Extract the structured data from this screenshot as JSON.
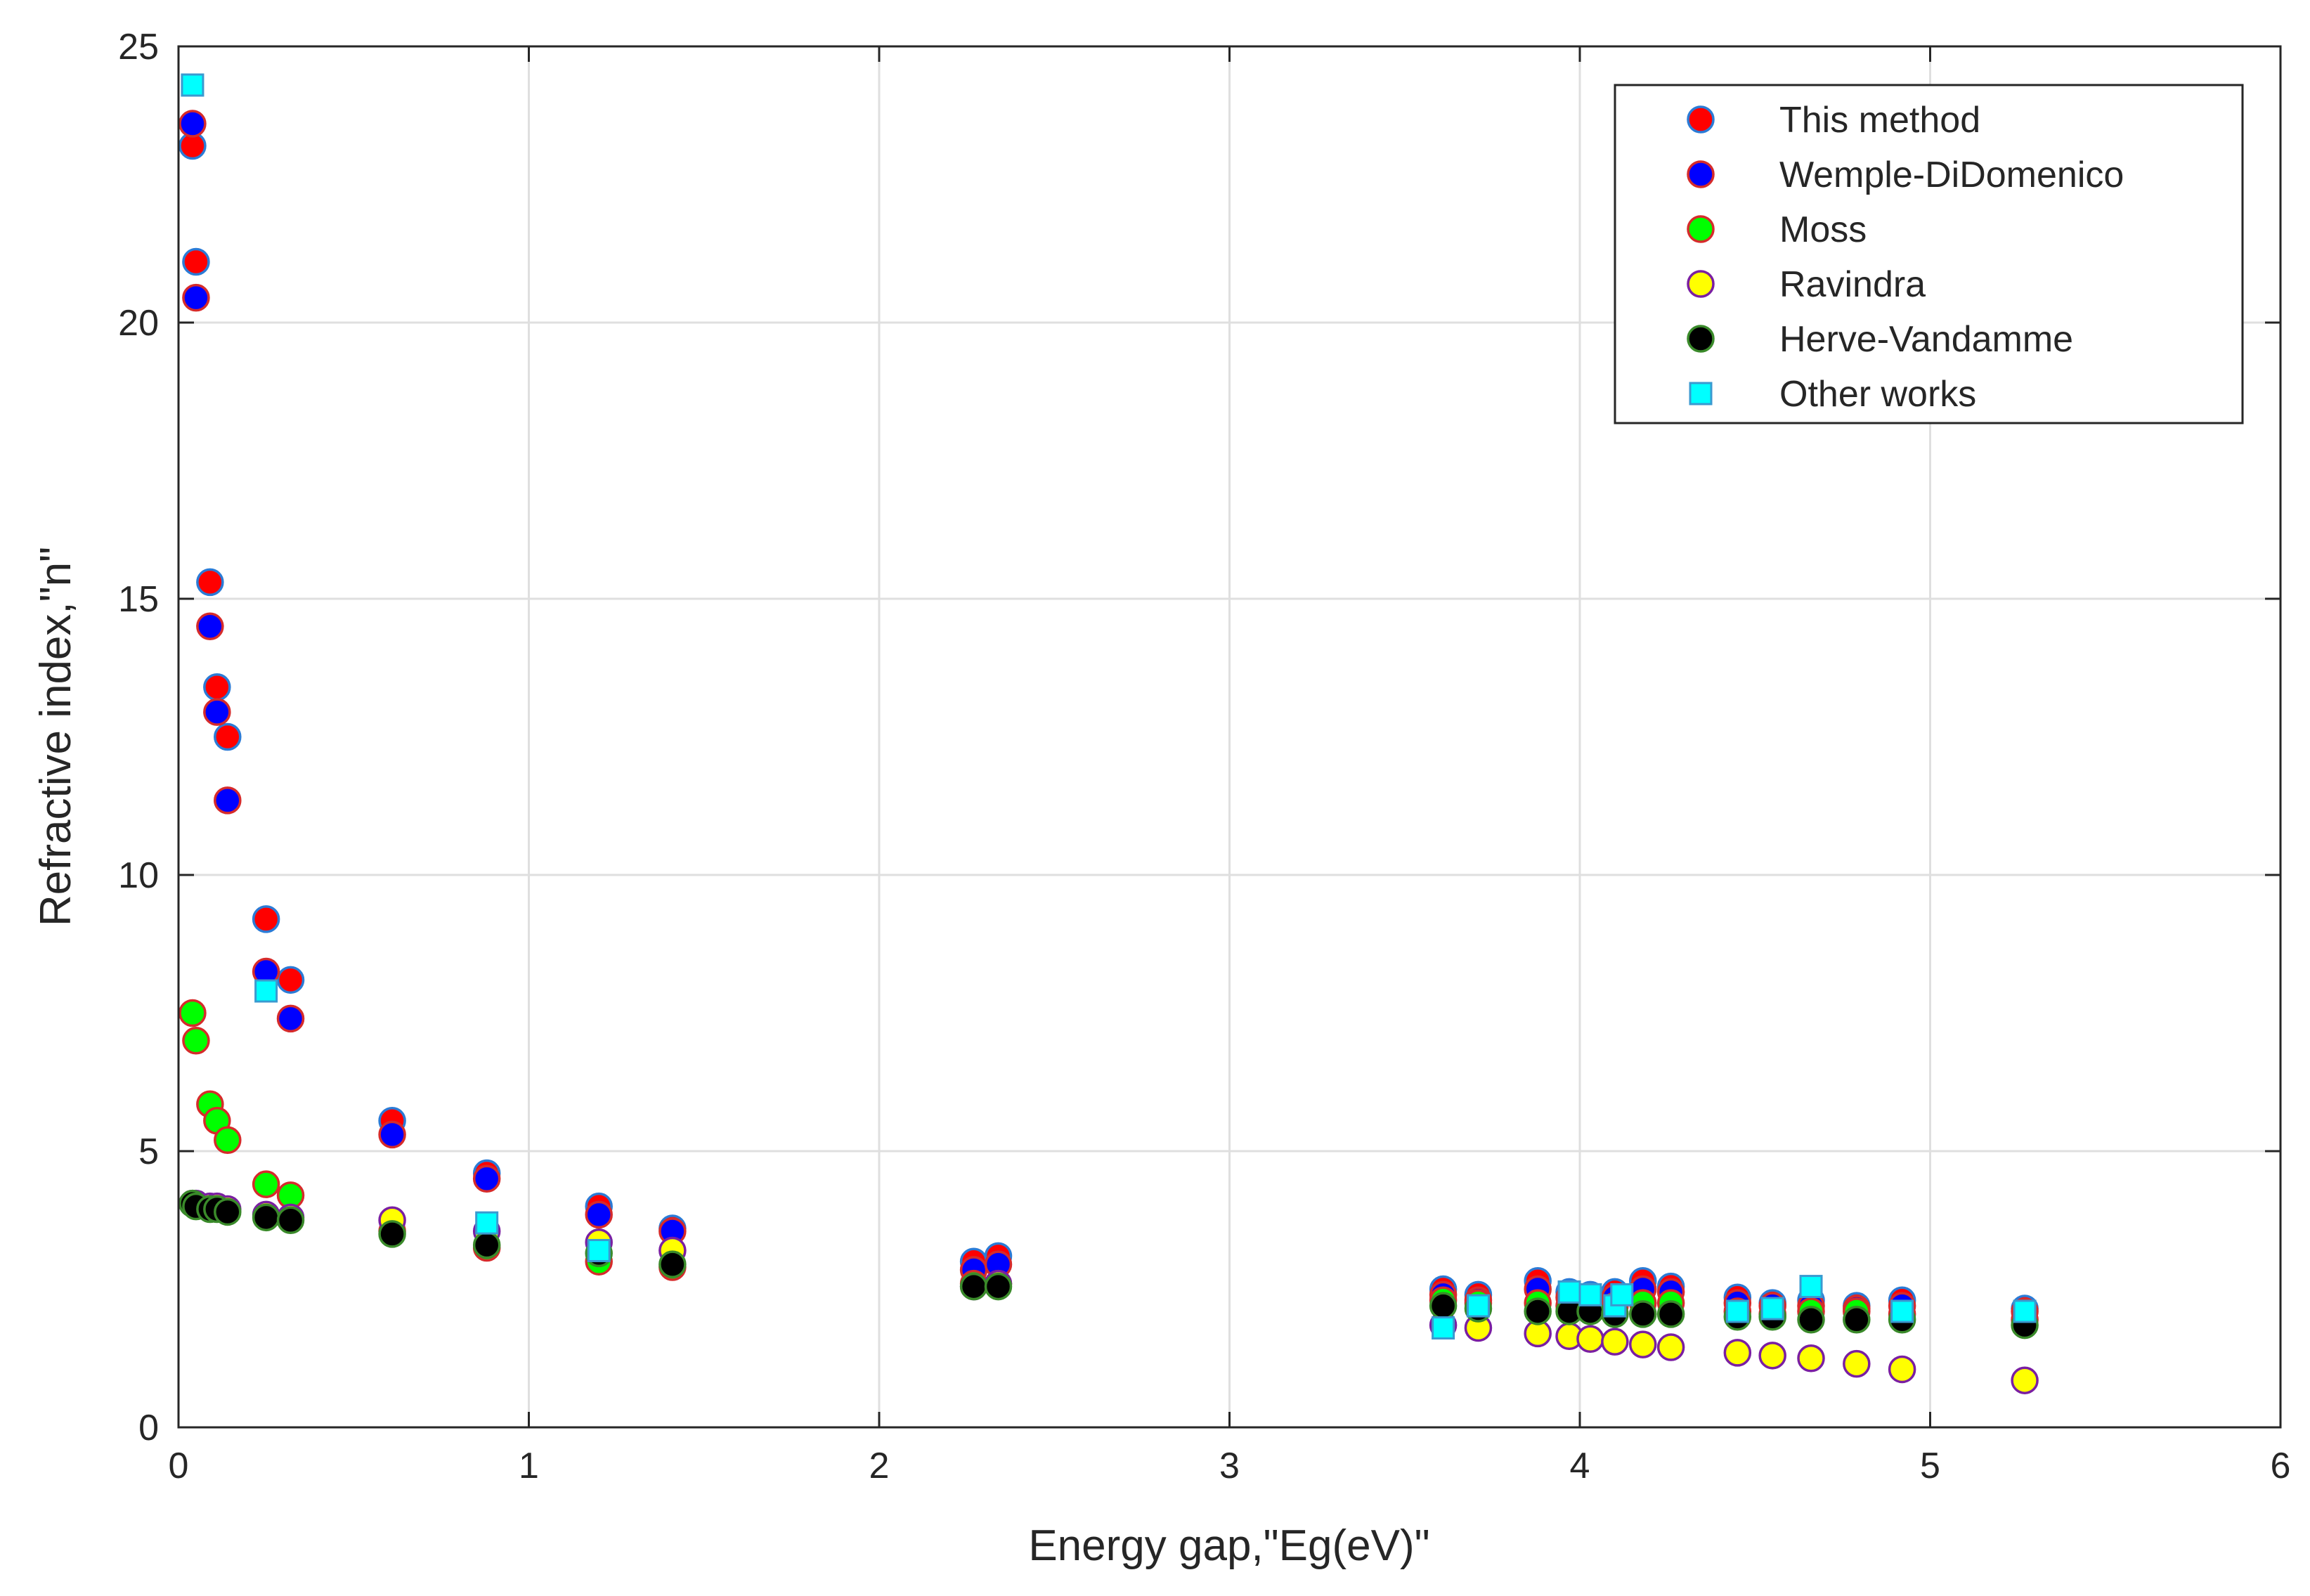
{
  "chart_data": {
    "type": "scatter",
    "title": "",
    "xlabel": "Energy gap,\"Eg(eV)\"",
    "ylabel": "Refractive index,\"n\"",
    "xlim": [
      0,
      6
    ],
    "ylim": [
      0,
      25
    ],
    "xticks": [
      0,
      1,
      2,
      3,
      4,
      5,
      6
    ],
    "yticks": [
      0,
      5,
      10,
      15,
      20,
      25
    ],
    "grid": true,
    "legend_position": "top-right",
    "series": [
      {
        "name": "This method",
        "marker": "circle",
        "fill": "#ff0000",
        "edge": "#2b7bd6",
        "points": [
          [
            0.04,
            23.2
          ],
          [
            0.05,
            21.1
          ],
          [
            0.09,
            15.3
          ],
          [
            0.11,
            13.4
          ],
          [
            0.14,
            12.5
          ],
          [
            0.25,
            9.2
          ],
          [
            0.32,
            8.1
          ],
          [
            0.61,
            5.55
          ],
          [
            0.88,
            4.6
          ],
          [
            1.2,
            4.0
          ],
          [
            1.41,
            3.6
          ],
          [
            2.27,
            3.0
          ],
          [
            2.34,
            3.1
          ],
          [
            3.61,
            2.5
          ],
          [
            3.71,
            2.4
          ],
          [
            3.88,
            2.65
          ],
          [
            3.97,
            2.45
          ],
          [
            4.03,
            2.4
          ],
          [
            4.1,
            2.45
          ],
          [
            4.18,
            2.65
          ],
          [
            4.26,
            2.55
          ],
          [
            4.45,
            2.35
          ],
          [
            4.55,
            2.25
          ],
          [
            4.66,
            2.3
          ],
          [
            4.79,
            2.2
          ],
          [
            4.92,
            2.3
          ],
          [
            5.27,
            2.15
          ]
        ]
      },
      {
        "name": "Wemple-DiDomenico",
        "marker": "circle",
        "fill": "#0000ff",
        "edge": "#d62b2b",
        "points": [
          [
            0.04,
            23.6
          ],
          [
            0.05,
            20.45
          ],
          [
            0.09,
            14.5
          ],
          [
            0.11,
            12.95
          ],
          [
            0.14,
            11.35
          ],
          [
            0.25,
            8.25
          ],
          [
            0.32,
            7.4
          ],
          [
            0.61,
            5.3
          ],
          [
            0.88,
            4.5
          ],
          [
            1.2,
            3.85
          ],
          [
            1.41,
            3.55
          ],
          [
            2.27,
            2.85
          ],
          [
            2.34,
            2.95
          ],
          [
            3.61,
            2.4
          ],
          [
            3.71,
            2.3
          ],
          [
            3.88,
            2.5
          ],
          [
            3.97,
            2.35
          ],
          [
            4.03,
            2.3
          ],
          [
            4.1,
            2.35
          ],
          [
            4.18,
            2.5
          ],
          [
            4.26,
            2.45
          ],
          [
            4.45,
            2.25
          ],
          [
            4.55,
            2.2
          ],
          [
            4.66,
            2.2
          ],
          [
            4.79,
            2.15
          ],
          [
            4.92,
            2.2
          ],
          [
            5.27,
            2.1
          ]
        ]
      },
      {
        "name": "Moss",
        "marker": "circle",
        "fill": "#00ff00",
        "edge": "#d62b2b",
        "points": [
          [
            0.04,
            7.5
          ],
          [
            0.05,
            7.0
          ],
          [
            0.09,
            5.85
          ],
          [
            0.11,
            5.55
          ],
          [
            0.14,
            5.2
          ],
          [
            0.25,
            4.4
          ],
          [
            0.32,
            4.2
          ],
          [
            0.61,
            3.55
          ],
          [
            0.88,
            3.25
          ],
          [
            1.2,
            3.0
          ],
          [
            1.41,
            2.9
          ],
          [
            2.27,
            2.6
          ],
          [
            2.34,
            2.6
          ],
          [
            3.61,
            2.3
          ],
          [
            3.71,
            2.25
          ],
          [
            3.88,
            2.25
          ],
          [
            3.97,
            2.2
          ],
          [
            4.03,
            2.15
          ],
          [
            4.1,
            2.2
          ],
          [
            4.18,
            2.25
          ],
          [
            4.26,
            2.25
          ],
          [
            4.45,
            2.1
          ],
          [
            4.55,
            2.05
          ],
          [
            4.66,
            2.1
          ],
          [
            4.79,
            2.1
          ],
          [
            4.92,
            2.05
          ],
          [
            5.27,
            1.95
          ]
        ]
      },
      {
        "name": "Ravindra",
        "marker": "circle",
        "fill": "#ffff00",
        "edge": "#7a1fa2",
        "points": [
          [
            0.04,
            4.05
          ],
          [
            0.05,
            4.05
          ],
          [
            0.09,
            4.0
          ],
          [
            0.11,
            4.0
          ],
          [
            0.14,
            3.95
          ],
          [
            0.25,
            3.85
          ],
          [
            0.32,
            3.8
          ],
          [
            0.61,
            3.75
          ],
          [
            0.88,
            3.55
          ],
          [
            1.2,
            3.35
          ],
          [
            1.41,
            3.2
          ],
          [
            2.27,
            2.55
          ],
          [
            2.34,
            2.6
          ],
          [
            3.61,
            1.85
          ],
          [
            3.71,
            1.8
          ],
          [
            3.88,
            1.7
          ],
          [
            3.97,
            1.65
          ],
          [
            4.03,
            1.6
          ],
          [
            4.1,
            1.55
          ],
          [
            4.18,
            1.5
          ],
          [
            4.26,
            1.45
          ],
          [
            4.45,
            1.35
          ],
          [
            4.55,
            1.3
          ],
          [
            4.66,
            1.25
          ],
          [
            4.79,
            1.15
          ],
          [
            4.92,
            1.05
          ],
          [
            5.27,
            0.85
          ]
        ]
      },
      {
        "name": "Herve-Vandamme",
        "marker": "circle",
        "fill": "#000000",
        "edge": "#3a8a2a",
        "points": [
          [
            0.04,
            4.05
          ],
          [
            0.05,
            4.0
          ],
          [
            0.09,
            3.95
          ],
          [
            0.11,
            3.95
          ],
          [
            0.14,
            3.9
          ],
          [
            0.25,
            3.8
          ],
          [
            0.32,
            3.75
          ],
          [
            0.61,
            3.5
          ],
          [
            0.88,
            3.3
          ],
          [
            1.2,
            3.15
          ],
          [
            1.41,
            2.95
          ],
          [
            2.27,
            2.55
          ],
          [
            2.34,
            2.55
          ],
          [
            3.61,
            2.2
          ],
          [
            3.71,
            2.15
          ],
          [
            3.88,
            2.1
          ],
          [
            3.97,
            2.1
          ],
          [
            4.03,
            2.1
          ],
          [
            4.1,
            2.05
          ],
          [
            4.18,
            2.05
          ],
          [
            4.26,
            2.05
          ],
          [
            4.45,
            2.0
          ],
          [
            4.55,
            2.0
          ],
          [
            4.66,
            1.95
          ],
          [
            4.79,
            1.95
          ],
          [
            4.92,
            1.95
          ],
          [
            5.27,
            1.85
          ]
        ]
      },
      {
        "name": "Other works",
        "marker": "square",
        "fill": "#00ffff",
        "edge": "#3a9ad0",
        "points": [
          [
            0.04,
            24.3
          ],
          [
            0.25,
            7.9
          ],
          [
            0.88,
            3.7
          ],
          [
            1.2,
            3.2
          ],
          [
            3.61,
            1.8
          ],
          [
            3.71,
            2.2
          ],
          [
            3.97,
            2.45
          ],
          [
            4.03,
            2.4
          ],
          [
            4.1,
            2.2
          ],
          [
            4.12,
            2.4
          ],
          [
            4.45,
            2.1
          ],
          [
            4.55,
            2.15
          ],
          [
            4.66,
            2.55
          ],
          [
            4.92,
            2.1
          ],
          [
            5.27,
            2.1
          ]
        ]
      }
    ]
  }
}
